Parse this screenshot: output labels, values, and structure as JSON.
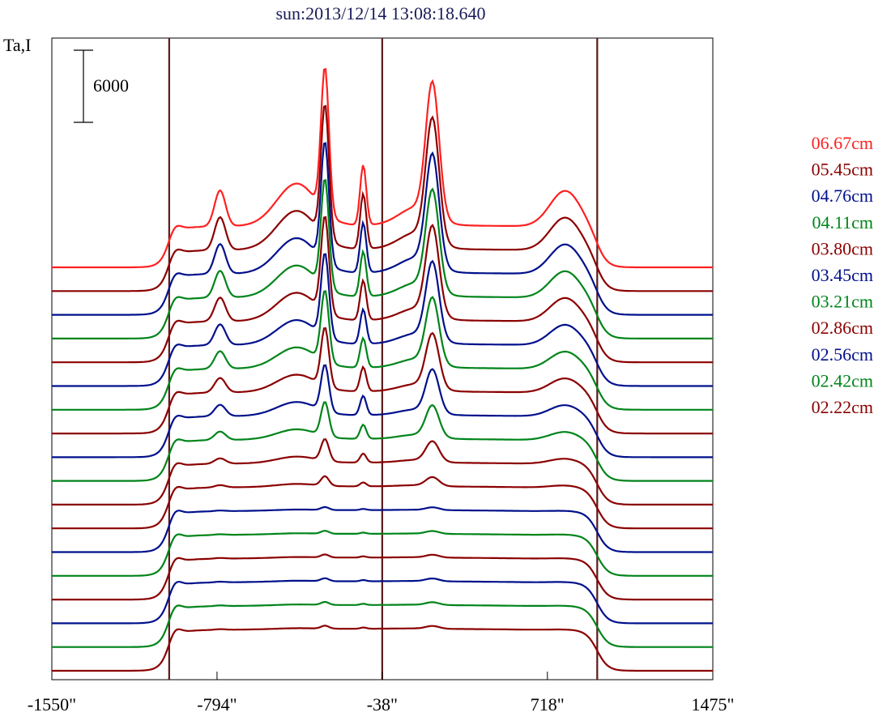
{
  "chart_data": {
    "type": "line",
    "title": "sun:2013/12/14 13:08:18.640",
    "ylabel": "Ta,I",
    "scale_bar_label": "6000",
    "scale_bar_value": 6000,
    "x_ticks": [
      -1550,
      -794,
      -38,
      718,
      1475
    ],
    "x_tick_labels": [
      "-1550\"",
      "-794\"",
      "-38\"",
      "718\"",
      "1475\""
    ],
    "xlim": [
      -1550,
      1475
    ],
    "vertical_markers": [
      -1013,
      -38,
      946
    ],
    "marker_color": "#5a1a1a",
    "series": [
      {
        "name": "06.67cm",
        "color": "#ff2020",
        "baseline": 0
      },
      {
        "name": "05.45cm",
        "color": "#8b0000",
        "baseline": 0
      },
      {
        "name": "04.76cm",
        "color": "#00108b",
        "baseline": 0
      },
      {
        "name": "04.11cm",
        "color": "#00841a",
        "baseline": 0
      },
      {
        "name": "03.80cm",
        "color": "#8b0000",
        "baseline": 0
      },
      {
        "name": "03.45cm",
        "color": "#00108b",
        "baseline": 0
      },
      {
        "name": "03.21cm",
        "color": "#00841a",
        "baseline": 0
      },
      {
        "name": "02.86cm",
        "color": "#8b0000",
        "baseline": 0
      },
      {
        "name": "02.56cm",
        "color": "#00108b",
        "baseline": 0
      },
      {
        "name": "02.42cm",
        "color": "#00841a",
        "baseline": 0
      },
      {
        "name": "02.22cm",
        "color": "#8b0000",
        "baseline": 0
      }
    ],
    "extra_trace_colors": [
      "#8b0000",
      "#00108b",
      "#00841a",
      "#8b0000",
      "#00108b",
      "#00841a",
      "#8b0000"
    ],
    "peaks": {
      "p1": [
        -780,
        3000
      ],
      "p2": [
        -300,
        12000
      ],
      "p3": [
        -125,
        5000
      ],
      "p4": [
        192,
        11000
      ],
      "p5": [
        800,
        3000
      ]
    },
    "grid": false,
    "legend_position": "right"
  }
}
